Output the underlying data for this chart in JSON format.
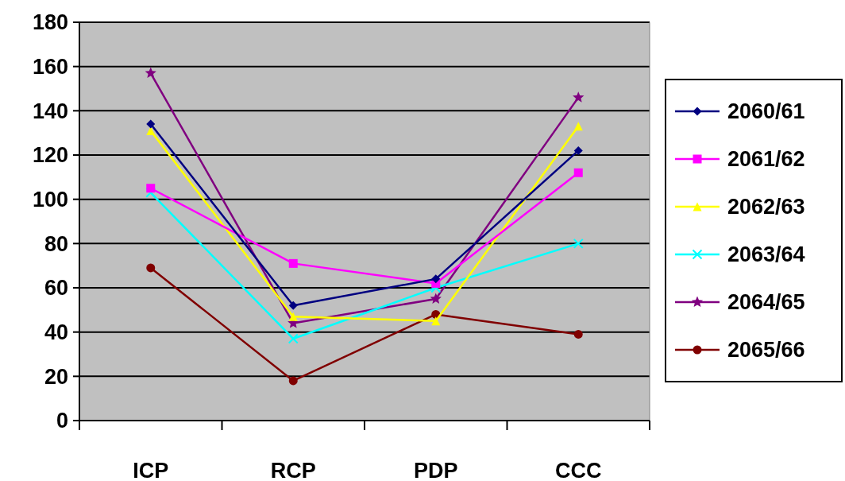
{
  "chart_data": {
    "type": "line",
    "categories": [
      "ICP",
      "RCP",
      "PDP",
      "CCC"
    ],
    "series": [
      {
        "name": "2060/61",
        "color": "#000080",
        "marker": "diamond",
        "values": [
          134,
          52,
          64,
          122
        ]
      },
      {
        "name": "2061/62",
        "color": "#ff00ff",
        "marker": "square",
        "values": [
          105,
          71,
          62,
          112
        ]
      },
      {
        "name": "2062/63",
        "color": "#ffff00",
        "marker": "triangle",
        "values": [
          131,
          47,
          45,
          133
        ]
      },
      {
        "name": "2063/64",
        "color": "#00ffff",
        "marker": "cross",
        "values": [
          103,
          37,
          60,
          80
        ]
      },
      {
        "name": "2064/65",
        "color": "#800080",
        "marker": "star",
        "values": [
          157,
          44,
          55,
          146
        ]
      },
      {
        "name": "2065/66",
        "color": "#800000",
        "marker": "circle",
        "values": [
          69,
          18,
          48,
          39
        ]
      }
    ],
    "ylim": [
      0,
      180
    ],
    "yticks": [
      0,
      20,
      40,
      60,
      80,
      100,
      120,
      140,
      160,
      180
    ],
    "grid": "y",
    "legend": "right"
  }
}
